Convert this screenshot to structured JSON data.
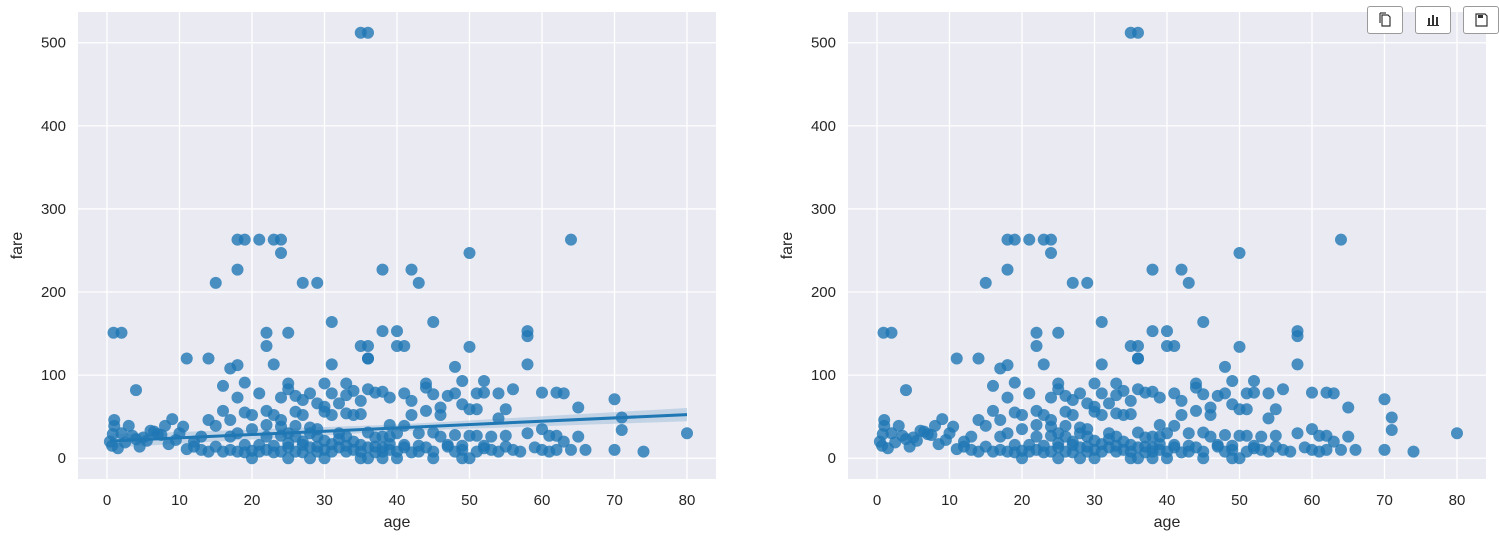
{
  "toolbar": {
    "buttons": [
      {
        "icon": "copy-icon"
      },
      {
        "icon": "bar-chart-icon"
      },
      {
        "icon": "save-icon"
      }
    ]
  },
  "style": {
    "background": "#eaeaf2",
    "grid": "#ffffff",
    "point_color": "#1f77b4",
    "line_color": "#1f77b4",
    "ci_color": "#a7c3de"
  },
  "chart_data": [
    {
      "type": "scatter",
      "title": "",
      "xlabel": "age",
      "ylabel": "fare",
      "xlim": [
        -4,
        84
      ],
      "ylim": [
        -25,
        537
      ],
      "xticks": [
        0,
        10,
        20,
        30,
        40,
        50,
        60,
        70,
        80
      ],
      "yticks": [
        0,
        100,
        200,
        300,
        400,
        500
      ],
      "grid": true,
      "regression": {
        "intercept": 20.5,
        "slope": 0.4,
        "x_range": [
          0.42,
          80
        ],
        "ci_low": 4,
        "ci_high": 8
      },
      "points": [
        [
          35,
          512
        ],
        [
          36,
          512
        ],
        [
          0.9,
          151
        ],
        [
          2,
          151
        ],
        [
          4,
          82
        ],
        [
          11,
          120
        ],
        [
          14,
          120
        ],
        [
          15,
          211
        ],
        [
          16,
          87
        ],
        [
          17,
          108
        ],
        [
          18,
          112
        ],
        [
          18,
          263
        ],
        [
          18,
          227
        ],
        [
          19,
          263
        ],
        [
          19,
          91
        ],
        [
          21,
          263
        ],
        [
          22,
          151
        ],
        [
          22,
          135
        ],
        [
          23,
          113
        ],
        [
          23,
          263
        ],
        [
          24,
          263
        ],
        [
          24,
          247
        ],
        [
          25,
          151
        ],
        [
          27,
          211
        ],
        [
          29,
          211
        ],
        [
          31,
          164
        ],
        [
          31,
          113
        ],
        [
          30,
          90
        ],
        [
          33,
          90
        ],
        [
          35,
          135
        ],
        [
          36,
          135
        ],
        [
          36,
          120
        ],
        [
          36,
          120
        ],
        [
          37,
          79
        ],
        [
          38,
          227
        ],
        [
          38,
          153
        ],
        [
          40,
          153
        ],
        [
          40,
          135
        ],
        [
          41,
          135
        ],
        [
          42,
          227
        ],
        [
          43,
          211
        ],
        [
          45,
          164
        ],
        [
          44,
          85
        ],
        [
          47,
          75
        ],
        [
          48,
          110
        ],
        [
          49,
          93
        ],
        [
          50,
          247
        ],
        [
          50,
          134
        ],
        [
          51,
          78
        ],
        [
          52,
          93
        ],
        [
          54,
          78
        ],
        [
          56,
          83
        ],
        [
          58,
          153
        ],
        [
          58,
          147
        ],
        [
          58,
          113
        ],
        [
          60,
          79
        ],
        [
          62,
          79
        ],
        [
          63,
          78
        ],
        [
          64,
          263
        ],
        [
          65,
          61
        ],
        [
          70,
          71
        ],
        [
          71,
          49
        ],
        [
          71,
          34
        ],
        [
          70,
          10
        ],
        [
          74,
          8
        ],
        [
          80,
          30
        ],
        [
          60,
          35
        ],
        [
          61,
          27
        ],
        [
          65,
          26
        ],
        [
          63,
          20
        ],
        [
          62,
          10
        ],
        [
          58,
          30
        ],
        [
          55,
          27
        ],
        [
          53,
          26
        ],
        [
          50,
          27
        ],
        [
          52,
          15
        ],
        [
          48,
          28
        ],
        [
          45,
          31
        ],
        [
          44,
          57
        ],
        [
          46,
          52
        ],
        [
          42,
          52
        ],
        [
          43,
          30
        ],
        [
          40,
          30
        ],
        [
          39,
          26
        ],
        [
          38,
          13
        ],
        [
          36,
          31
        ],
        [
          35,
          53
        ],
        [
          34,
          52
        ],
        [
          33,
          54
        ],
        [
          32,
          30
        ],
        [
          31,
          52
        ],
        [
          30,
          56
        ],
        [
          29,
          35
        ],
        [
          28,
          30
        ],
        [
          27,
          52
        ],
        [
          26,
          56
        ],
        [
          25,
          30
        ],
        [
          24,
          46
        ],
        [
          23,
          52
        ],
        [
          22,
          57
        ],
        [
          21,
          78
        ],
        [
          20,
          52
        ],
        [
          19,
          55
        ],
        [
          18,
          73
        ],
        [
          17,
          46
        ],
        [
          16,
          57
        ],
        [
          15,
          39
        ],
        [
          14,
          46
        ],
        [
          13,
          26
        ],
        [
          12,
          20
        ],
        [
          11,
          11
        ],
        [
          10,
          30
        ],
        [
          9,
          47
        ],
        [
          8,
          39
        ],
        [
          7,
          29
        ],
        [
          6,
          33
        ],
        [
          5,
          25
        ],
        [
          4,
          23
        ],
        [
          3,
          39
        ],
        [
          2,
          30
        ],
        [
          1,
          46
        ],
        [
          1,
          39
        ],
        [
          0.8,
          29
        ],
        [
          0.4,
          20
        ],
        [
          0.7,
          15
        ],
        [
          1.5,
          12
        ],
        [
          2.5,
          19
        ],
        [
          3.5,
          27
        ],
        [
          4.5,
          14
        ],
        [
          5.5,
          21
        ],
        [
          6.5,
          32
        ],
        [
          7.5,
          28
        ],
        [
          8.5,
          17
        ],
        [
          9.5,
          22
        ],
        [
          10.5,
          38
        ],
        [
          12,
          14
        ],
        [
          13,
          10
        ],
        [
          14,
          8
        ],
        [
          15,
          14
        ],
        [
          16,
          8
        ],
        [
          17,
          10
        ],
        [
          18,
          8
        ],
        [
          19,
          7
        ],
        [
          20,
          9
        ],
        [
          21,
          8
        ],
        [
          22,
          10
        ],
        [
          23,
          7
        ],
        [
          24,
          8
        ],
        [
          25,
          13
        ],
        [
          26,
          8
        ],
        [
          27,
          7
        ],
        [
          28,
          13
        ],
        [
          29,
          8
        ],
        [
          30,
          10
        ],
        [
          31,
          8
        ],
        [
          32,
          13
        ],
        [
          33,
          8
        ],
        [
          34,
          10
        ],
        [
          35,
          8
        ],
        [
          36,
          13
        ],
        [
          37,
          7
        ],
        [
          38,
          8
        ],
        [
          39,
          10
        ],
        [
          40,
          8
        ],
        [
          41,
          13
        ],
        [
          42,
          7
        ],
        [
          43,
          8
        ],
        [
          44,
          13
        ],
        [
          45,
          8
        ],
        [
          46,
          26
        ],
        [
          47,
          14
        ],
        [
          48,
          8
        ],
        [
          49,
          10
        ],
        [
          51,
          8
        ],
        [
          52,
          12
        ],
        [
          53,
          10
        ],
        [
          54,
          8
        ],
        [
          55,
          14
        ],
        [
          56,
          10
        ],
        [
          57,
          8
        ],
        [
          59,
          13
        ],
        [
          60,
          10
        ],
        [
          61,
          8
        ],
        [
          62,
          27
        ],
        [
          64,
          10
        ],
        [
          66,
          10
        ],
        [
          20,
          0
        ],
        [
          25,
          0
        ],
        [
          28,
          0
        ],
        [
          30,
          0
        ],
        [
          35,
          0
        ],
        [
          36,
          0
        ],
        [
          38,
          0
        ],
        [
          40,
          0
        ],
        [
          45,
          0
        ],
        [
          49,
          0
        ],
        [
          50,
          0
        ],
        [
          19,
          16
        ],
        [
          21,
          16
        ],
        [
          22,
          26
        ],
        [
          24,
          27
        ],
        [
          26,
          26
        ],
        [
          27,
          20
        ],
        [
          29,
          26
        ],
        [
          30,
          21
        ],
        [
          32,
          23
        ],
        [
          33,
          26
        ],
        [
          34,
          20
        ],
        [
          37,
          25
        ],
        [
          38,
          26
        ],
        [
          39,
          40
        ],
        [
          41,
          39
        ],
        [
          20,
          35
        ],
        [
          22,
          40
        ],
        [
          24,
          38
        ],
        [
          26,
          39
        ],
        [
          28,
          37
        ],
        [
          18,
          30
        ],
        [
          17,
          26
        ],
        [
          23,
          15
        ],
        [
          25,
          18
        ],
        [
          27,
          16
        ],
        [
          29,
          14
        ],
        [
          31,
          17
        ],
        [
          33,
          15
        ],
        [
          35,
          16
        ],
        [
          37,
          14
        ],
        [
          39,
          17
        ],
        [
          41,
          16
        ],
        [
          43,
          15
        ],
        [
          47,
          16
        ],
        [
          49,
          15
        ],
        [
          51,
          27
        ],
        [
          27,
          70
        ],
        [
          24,
          73
        ],
        [
          25,
          83
        ],
        [
          28,
          78
        ],
        [
          29,
          66
        ],
        [
          31,
          78
        ],
        [
          33,
          76
        ],
        [
          34,
          81
        ],
        [
          36,
          83
        ],
        [
          38,
          80
        ],
        [
          39,
          73
        ],
        [
          41,
          78
        ],
        [
          42,
          69
        ],
        [
          44,
          90
        ],
        [
          45,
          77
        ],
        [
          46,
          61
        ],
        [
          48,
          78
        ],
        [
          49,
          65
        ],
        [
          50,
          59
        ],
        [
          51,
          59
        ],
        [
          52,
          79
        ],
        [
          54,
          48
        ],
        [
          55,
          59
        ],
        [
          25,
          90
        ],
        [
          26,
          75
        ],
        [
          30,
          62
        ],
        [
          32,
          66
        ],
        [
          35,
          69
        ]
      ]
    },
    {
      "type": "scatter",
      "title": "",
      "xlabel": "age",
      "ylabel": "fare",
      "xlim": [
        -4,
        84
      ],
      "ylim": [
        -25,
        537
      ],
      "xticks": [
        0,
        10,
        20,
        30,
        40,
        50,
        60,
        70,
        80
      ],
      "yticks": [
        0,
        100,
        200,
        300,
        400,
        500
      ],
      "grid": true,
      "points": "same as first chart"
    }
  ]
}
